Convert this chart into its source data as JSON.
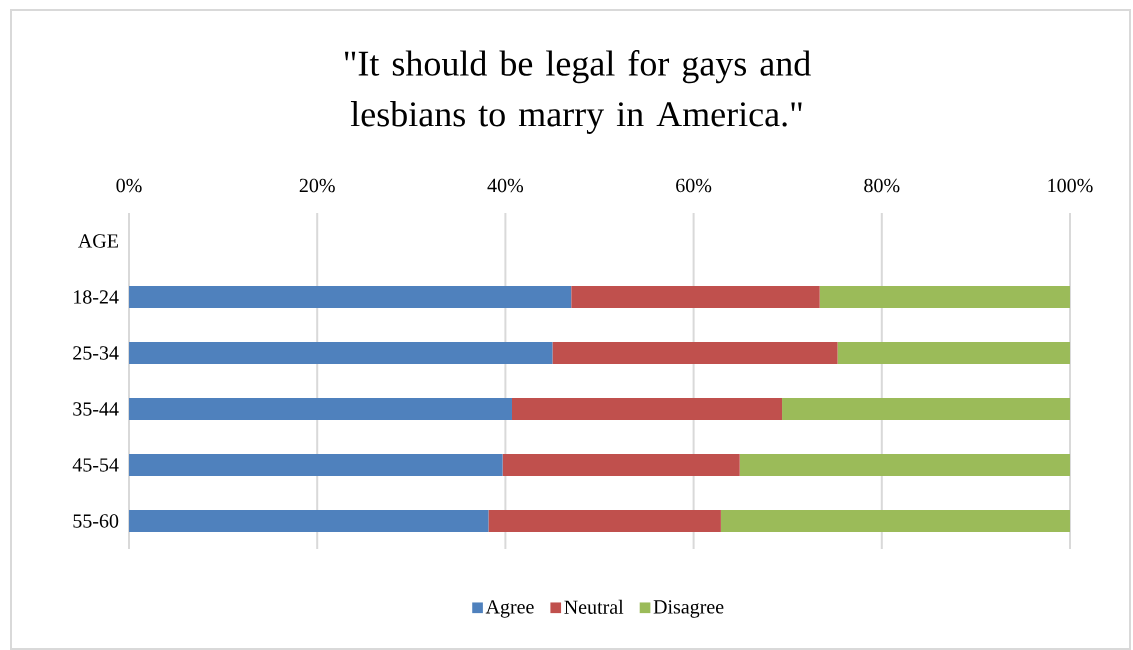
{
  "chart_data": {
    "type": "bar",
    "orientation": "horizontal",
    "stacked": true,
    "title": "\"It should be legal for gays and lesbians to marry in America.\"",
    "categories": [
      "AGE",
      "18-24",
      "25-34",
      "35-44",
      "45-54",
      "55-60"
    ],
    "series": [
      {
        "name": "Agree",
        "color": "#4f81bd",
        "values": [
          null,
          47.0,
          45.0,
          40.7,
          39.7,
          38.2
        ]
      },
      {
        "name": "Neutral",
        "color": "#c0504d",
        "values": [
          null,
          26.4,
          30.3,
          28.7,
          25.2,
          24.7
        ]
      },
      {
        "name": "Disagree",
        "color": "#9bbb59",
        "values": [
          null,
          26.6,
          24.7,
          30.6,
          35.1,
          37.1
        ]
      }
    ],
    "xlim": [
      0,
      100
    ],
    "xticks": [
      {
        "value": 0,
        "label": "0%"
      },
      {
        "value": 20,
        "label": "20%"
      },
      {
        "value": 40,
        "label": "40%"
      },
      {
        "value": 60,
        "label": "60%"
      },
      {
        "value": 80,
        "label": "80%"
      },
      {
        "value": 100,
        "label": "100%"
      }
    ],
    "grid": "x",
    "legend": "bottom"
  }
}
